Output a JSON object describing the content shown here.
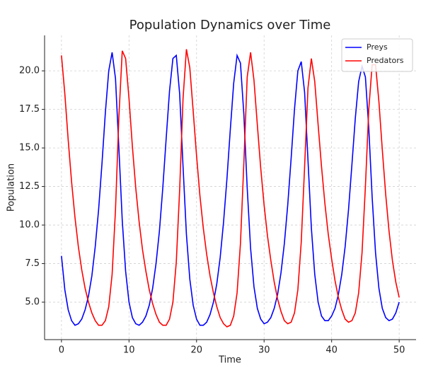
{
  "chart_data": {
    "type": "line",
    "title": "Population Dynamics over Time",
    "x_label": "Time",
    "y_label": "Population",
    "x": [
      0,
      0.5,
      1,
      1.5,
      2,
      2.5,
      3,
      3.5,
      4,
      4.5,
      5,
      5.5,
      6,
      6.5,
      7,
      7.5,
      8,
      8.5,
      9,
      9.5,
      10,
      10.5,
      11,
      11.5,
      12,
      12.5,
      13,
      13.5,
      14,
      14.5,
      15,
      15.5,
      16,
      16.5,
      17,
      17.5,
      18,
      18.5,
      19,
      19.5,
      20,
      20.5,
      21,
      21.5,
      22,
      22.5,
      23,
      23.5,
      24,
      24.5,
      25,
      25.5,
      26,
      26.5,
      27,
      27.5,
      28,
      28.5,
      29,
      29.5,
      30,
      30.5,
      31,
      31.5,
      32,
      32.5,
      33,
      33.5,
      34,
      34.5,
      35,
      35.5,
      36,
      36.5,
      37,
      37.5,
      38,
      38.5,
      39,
      39.5,
      40,
      40.5,
      41,
      41.5,
      42,
      42.5,
      43,
      43.5,
      44,
      44.5,
      45,
      45.5,
      46,
      46.5,
      47,
      47.5,
      48,
      48.5,
      49,
      49.5,
      50
    ],
    "series": [
      {
        "name": "Preys",
        "color": "#0000ff",
        "values": [
          8.0,
          5.8,
          4.5,
          3.8,
          3.5,
          3.6,
          3.9,
          4.5,
          5.4,
          6.7,
          8.6,
          11.0,
          14.0,
          17.3,
          20.0,
          21.2,
          19.5,
          15.0,
          10.3,
          7.0,
          5.0,
          4.0,
          3.6,
          3.5,
          3.7,
          4.1,
          4.8,
          5.9,
          7.5,
          9.6,
          12.4,
          15.6,
          18.7,
          20.8,
          21.0,
          18.5,
          13.8,
          9.4,
          6.5,
          4.8,
          3.9,
          3.5,
          3.5,
          3.7,
          4.2,
          5.0,
          6.2,
          7.9,
          10.2,
          13.0,
          16.2,
          19.2,
          21.0,
          20.5,
          17.2,
          12.4,
          8.5,
          6.0,
          4.6,
          3.9,
          3.6,
          3.7,
          4.0,
          4.6,
          5.5,
          6.9,
          8.8,
          11.3,
          14.3,
          17.5,
          20.0,
          20.6,
          18.6,
          14.2,
          9.8,
          6.8,
          5.0,
          4.1,
          3.8,
          3.8,
          4.1,
          4.6,
          5.5,
          6.8,
          8.6,
          11.0,
          13.9,
          16.9,
          19.3,
          20.3,
          19.6,
          16.3,
          11.8,
          8.2,
          5.9,
          4.6,
          4.0,
          3.8,
          3.9,
          4.3,
          5.0
        ]
      },
      {
        "name": "Predators",
        "color": "#ff0000",
        "values": [
          21.0,
          18.5,
          15.5,
          12.8,
          10.5,
          8.6,
          7.1,
          5.9,
          5.0,
          4.3,
          3.8,
          3.5,
          3.5,
          3.8,
          4.7,
          6.8,
          11.0,
          17.0,
          21.3,
          20.8,
          18.2,
          15.1,
          12.4,
          10.2,
          8.4,
          7.0,
          5.8,
          4.9,
          4.2,
          3.7,
          3.5,
          3.5,
          3.9,
          5.0,
          7.6,
          12.3,
          18.2,
          21.4,
          20.2,
          17.4,
          14.5,
          11.9,
          9.8,
          8.1,
          6.7,
          5.6,
          4.7,
          4.0,
          3.6,
          3.4,
          3.5,
          4.1,
          5.6,
          8.8,
          14.0,
          19.6,
          21.2,
          19.4,
          16.5,
          13.7,
          11.3,
          9.3,
          7.7,
          6.3,
          5.2,
          4.4,
          3.8,
          3.6,
          3.7,
          4.3,
          5.8,
          8.9,
          13.8,
          18.9,
          20.8,
          19.3,
          16.5,
          13.8,
          11.4,
          9.4,
          7.8,
          6.4,
          5.3,
          4.5,
          3.9,
          3.7,
          3.8,
          4.3,
          5.6,
          8.2,
          12.5,
          17.5,
          20.4,
          20.4,
          18.0,
          14.9,
          12.0,
          9.6,
          7.7,
          6.3,
          5.3
        ]
      }
    ],
    "xlim": [
      -2.5,
      52.5
    ],
    "ylim": [
      2.57,
      22.3
    ],
    "xticks": [
      0,
      10,
      20,
      30,
      40,
      50
    ],
    "yticks": [
      {
        "value": 5,
        "label": "5.0"
      },
      7.5,
      {
        "value": 10,
        "label": "10.0"
      },
      12.5,
      {
        "value": 15,
        "label": "15.0"
      },
      17.5,
      {
        "value": 20,
        "label": "20.0"
      }
    ],
    "grid": true,
    "legend": "upper right"
  }
}
